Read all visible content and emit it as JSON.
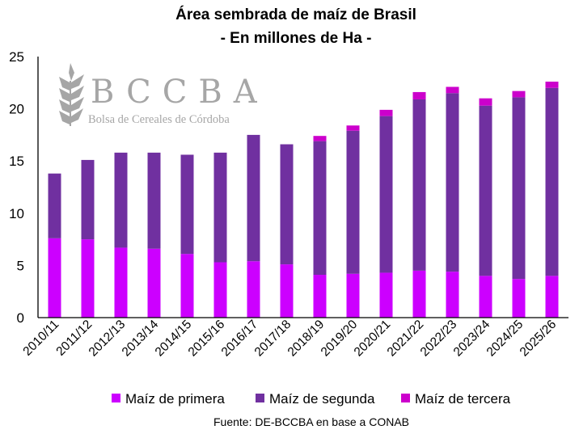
{
  "chart_data": {
    "type": "bar",
    "stacked": true,
    "title": "Área sembrada de maíz de Brasil",
    "subtitle": "- En millones de Ha  -",
    "xlabel": "",
    "ylabel": "",
    "ylim": [
      0,
      25
    ],
    "yticks": [
      0,
      5,
      10,
      15,
      20,
      25
    ],
    "grid": false,
    "legend_position": "bottom",
    "categories": [
      "2010/11",
      "2011/12",
      "2012/13",
      "2013/14",
      "2014/15",
      "2015/16",
      "2016/17",
      "2017/18",
      "2018/19",
      "2019/20",
      "2020/21",
      "2021/22",
      "2022/23",
      "2023/24",
      "2024/25",
      "2025/26"
    ],
    "series": [
      {
        "name": "Maíz de primera",
        "color": "#CC00FF",
        "values": [
          7.6,
          7.5,
          6.7,
          6.6,
          6.1,
          5.3,
          5.4,
          5.1,
          4.1,
          4.2,
          4.3,
          4.5,
          4.4,
          4.0,
          3.7,
          4.0
        ]
      },
      {
        "name": "Maíz de segunda",
        "color": "#7030A0",
        "values": [
          6.2,
          7.6,
          9.1,
          9.2,
          9.5,
          10.5,
          12.1,
          11.5,
          12.8,
          13.7,
          15.0,
          16.4,
          17.1,
          16.3,
          17.4,
          18.0
        ]
      },
      {
        "name": "Maíz de tercera",
        "color": "#CC00CC",
        "values": [
          0,
          0,
          0,
          0,
          0,
          0,
          0,
          0,
          0.5,
          0.5,
          0.6,
          0.7,
          0.6,
          0.7,
          0.6,
          0.6
        ]
      }
    ],
    "source": "Fuente: DE-BCCBA en base a CONAB"
  },
  "logo": {
    "name": "BCCBA",
    "subtitle": "Bolsa de Cereales de Córdoba"
  }
}
